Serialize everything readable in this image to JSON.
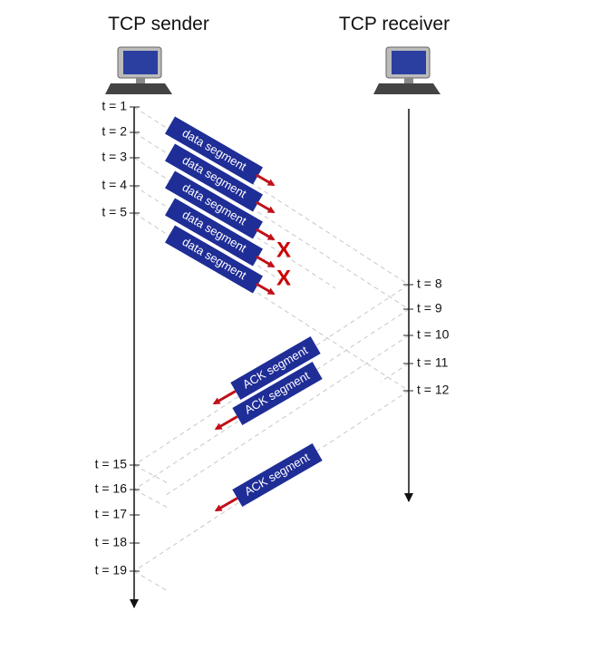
{
  "sender": {
    "title": "TCP sender",
    "times": [
      "t = 1",
      "t = 2",
      "t = 3",
      "t = 4",
      "t = 5",
      "t = 15",
      "t = 16",
      "t = 17",
      "t = 18",
      "t = 19"
    ]
  },
  "receiver": {
    "title": "TCP receiver",
    "times": [
      "t = 8",
      "t = 9",
      "t = 10",
      "t = 11",
      "t = 12"
    ]
  },
  "data_segments": [
    "data segment",
    "data segment",
    "data segment",
    "data segment",
    "data segment"
  ],
  "ack_segments": [
    "ACK segment",
    "ACK segment",
    "ACK segment"
  ],
  "loss_marks": [
    "X",
    "X"
  ]
}
